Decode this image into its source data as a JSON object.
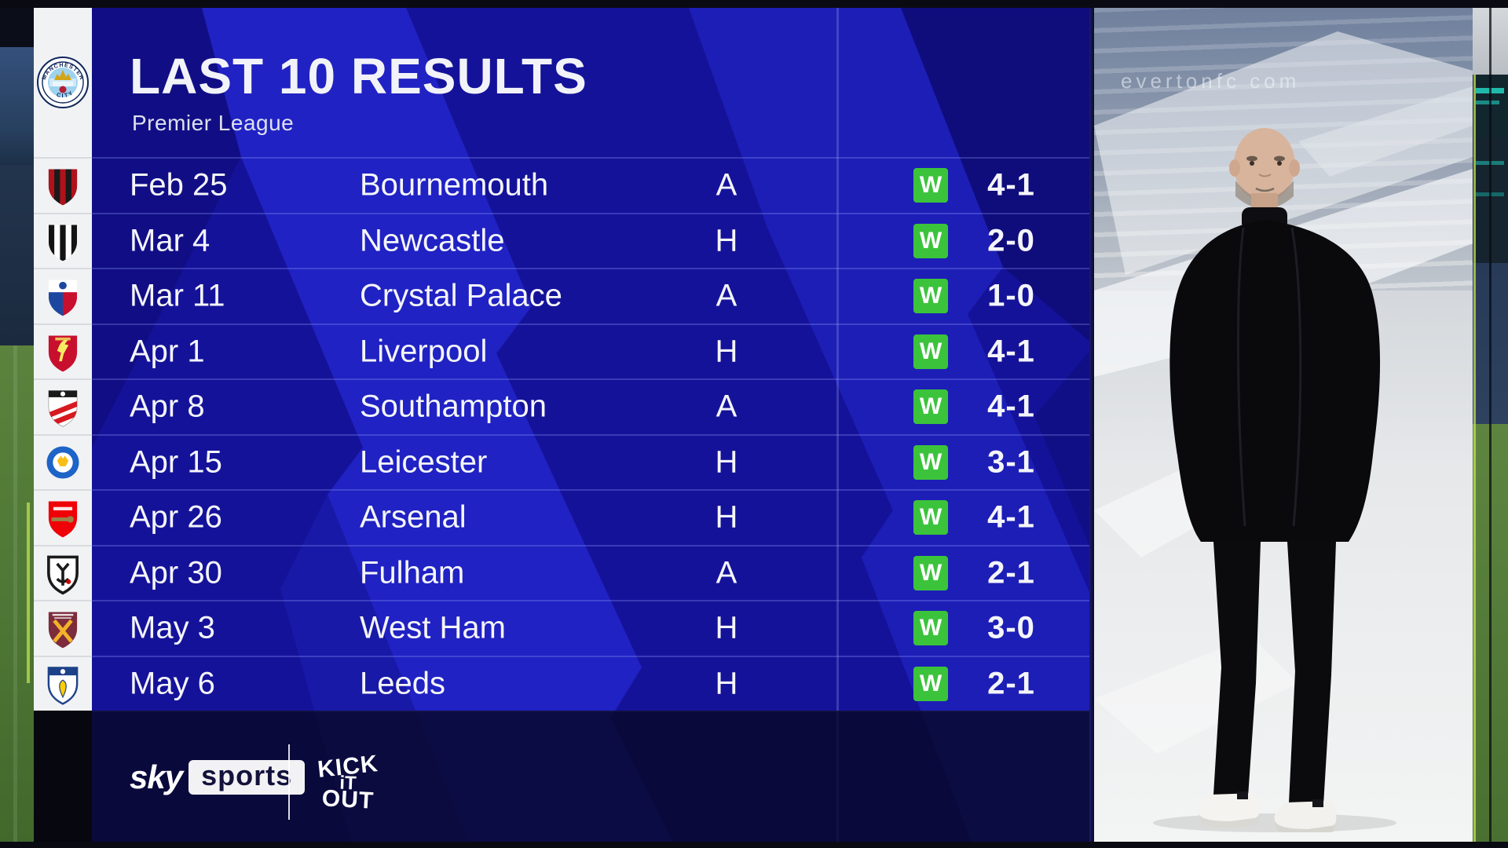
{
  "header": {
    "title": "LAST 10 RESULTS",
    "subtitle": "Premier League"
  },
  "club": {
    "name": "Manchester City",
    "crest_ring_top": "MANCHESTER",
    "crest_ring_bottom": "CITY"
  },
  "table": {
    "rows": [
      {
        "date": "Feb 25",
        "opponent": "Bournemouth",
        "venue": "A",
        "result": "W",
        "score": "4-1",
        "crest": "bournemouth"
      },
      {
        "date": "Mar 4",
        "opponent": "Newcastle",
        "venue": "H",
        "result": "W",
        "score": "2-0",
        "crest": "newcastle"
      },
      {
        "date": "Mar 11",
        "opponent": "Crystal Palace",
        "venue": "A",
        "result": "W",
        "score": "1-0",
        "crest": "crystal-palace"
      },
      {
        "date": "Apr 1",
        "opponent": "Liverpool",
        "venue": "H",
        "result": "W",
        "score": "4-1",
        "crest": "liverpool"
      },
      {
        "date": "Apr 8",
        "opponent": "Southampton",
        "venue": "A",
        "result": "W",
        "score": "4-1",
        "crest": "southampton"
      },
      {
        "date": "Apr 15",
        "opponent": "Leicester",
        "venue": "H",
        "result": "W",
        "score": "3-1",
        "crest": "leicester"
      },
      {
        "date": "Apr 26",
        "opponent": "Arsenal",
        "venue": "H",
        "result": "W",
        "score": "4-1",
        "crest": "arsenal"
      },
      {
        "date": "Apr 30",
        "opponent": "Fulham",
        "venue": "A",
        "result": "W",
        "score": "2-1",
        "crest": "fulham"
      },
      {
        "date": "May 3",
        "opponent": "West Ham",
        "venue": "H",
        "result": "W",
        "score": "3-0",
        "crest": "west-ham"
      },
      {
        "date": "May 6",
        "opponent": "Leeds",
        "venue": "H",
        "result": "W",
        "score": "2-1",
        "crest": "leeds"
      }
    ]
  },
  "footer": {
    "sky": "sky",
    "sports": "sports",
    "kick_it_out": {
      "line1": "KICK",
      "line2": "iT",
      "line3": "OUT"
    }
  },
  "photo_panel": {
    "watermark": "evertonfc com"
  },
  "colors": {
    "win_green": "#3cc33c",
    "panel_blue": "#15129a",
    "stripe_blue": "#2326cc",
    "bottom_navy": "#0d0d3a",
    "rail_white": "#f1f2f4"
  },
  "crest_colors": {
    "bournemouth": [
      "#b0121b",
      "#1a1a1a"
    ],
    "newcastle": [
      "#141414",
      "#ffffff"
    ],
    "crystal-palace": [
      "#1c47a0",
      "#c8102e",
      "#ffffff"
    ],
    "liverpool": [
      "#c8102e",
      "#f6eb61",
      "#00875a"
    ],
    "southampton": [
      "#ffffff",
      "#d71920",
      "#1a1a1a"
    ],
    "leicester": [
      "#1d64c8",
      "#ffffff",
      "#f8be15"
    ],
    "arsenal": [
      "#ef0107",
      "#9c824a",
      "#ffffff"
    ],
    "fulham": [
      "#ffffff",
      "#1a1a1a",
      "#cc0000"
    ],
    "west-ham": [
      "#7c2c3b",
      "#f3b229",
      "#ffffff"
    ],
    "leeds": [
      "#ffffff",
      "#1d4289",
      "#ffcd00"
    ]
  }
}
